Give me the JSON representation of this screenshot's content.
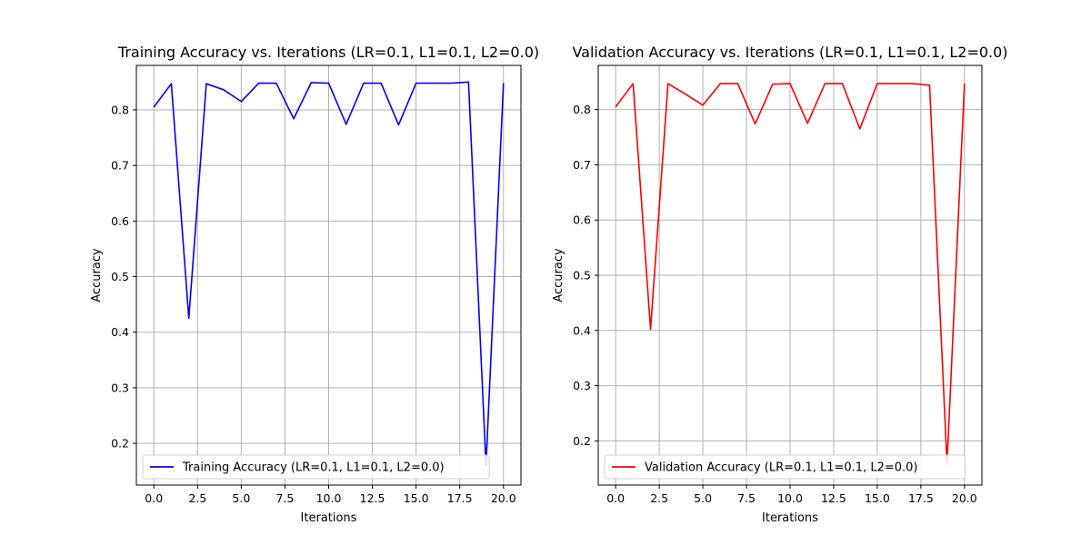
{
  "chart_data": [
    {
      "type": "line",
      "title": "Training Accuracy vs. Iterations (LR=0.1, L1=0.1, L2=0.0)",
      "xlabel": "Iterations",
      "ylabel": "Accuracy",
      "xlim": [
        -1,
        21
      ],
      "ylim": [
        0.125,
        0.88
      ],
      "xticks": [
        0.0,
        2.5,
        5.0,
        7.5,
        10.0,
        12.5,
        15.0,
        17.5,
        20.0
      ],
      "xtick_labels": [
        "0.0",
        "2.5",
        "5.0",
        "7.5",
        "10.0",
        "12.5",
        "15.0",
        "17.5",
        "20.0"
      ],
      "yticks": [
        0.2,
        0.3,
        0.4,
        0.5,
        0.6,
        0.7,
        0.8
      ],
      "ytick_labels": [
        "0.2",
        "0.3",
        "0.4",
        "0.5",
        "0.6",
        "0.7",
        "0.8"
      ],
      "grid": true,
      "legend_position": "lower-left",
      "series": [
        {
          "name": "Training Accuracy (LR=0.1, L1=0.1, L2=0.0)",
          "color": "#0000ff",
          "x": [
            0,
            1,
            2,
            3,
            4,
            5,
            6,
            7,
            8,
            9,
            10,
            11,
            12,
            13,
            14,
            15,
            16,
            17,
            18,
            19,
            20
          ],
          "y": [
            0.805,
            0.847,
            0.425,
            0.847,
            0.836,
            0.815,
            0.848,
            0.848,
            0.784,
            0.849,
            0.848,
            0.774,
            0.848,
            0.848,
            0.773,
            0.848,
            0.848,
            0.848,
            0.85,
            0.16,
            0.848
          ]
        }
      ]
    },
    {
      "type": "line",
      "title": "Validation Accuracy vs. Iterations (LR=0.1, L1=0.1, L2=0.0)",
      "xlabel": "Iterations",
      "ylabel": "Accuracy",
      "xlim": [
        -1,
        21
      ],
      "ylim": [
        0.12,
        0.88
      ],
      "xticks": [
        0.0,
        2.5,
        5.0,
        7.5,
        10.0,
        12.5,
        15.0,
        17.5,
        20.0
      ],
      "xtick_labels": [
        "0.0",
        "2.5",
        "5.0",
        "7.5",
        "10.0",
        "12.5",
        "15.0",
        "17.5",
        "20.0"
      ],
      "yticks": [
        0.2,
        0.3,
        0.4,
        0.5,
        0.6,
        0.7,
        0.8
      ],
      "ytick_labels": [
        "0.2",
        "0.3",
        "0.4",
        "0.5",
        "0.6",
        "0.7",
        "0.8"
      ],
      "grid": true,
      "legend_position": "lower-left",
      "series": [
        {
          "name": "Validation Accuracy (LR=0.1, L1=0.1, L2=0.0)",
          "color": "#ff0000",
          "x": [
            0,
            1,
            2,
            3,
            4,
            5,
            6,
            7,
            8,
            9,
            10,
            11,
            12,
            13,
            14,
            15,
            16,
            17,
            18,
            19,
            20
          ],
          "y": [
            0.805,
            0.847,
            0.402,
            0.847,
            0.828,
            0.808,
            0.847,
            0.847,
            0.774,
            0.846,
            0.847,
            0.775,
            0.847,
            0.847,
            0.765,
            0.847,
            0.847,
            0.847,
            0.844,
            0.158,
            0.847
          ]
        }
      ]
    }
  ]
}
